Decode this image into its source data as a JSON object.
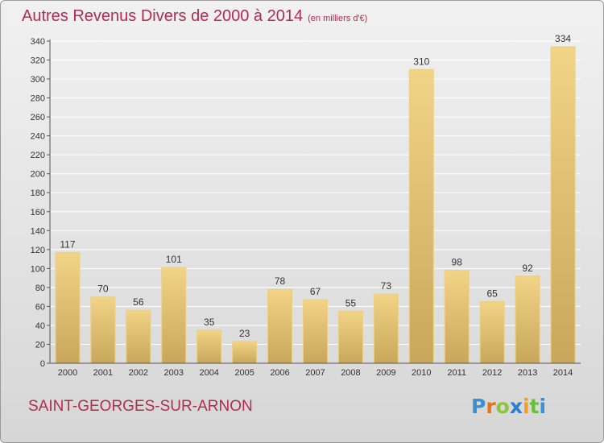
{
  "header": {
    "title": "Autres Revenus Divers de 2000 à 2014",
    "unit": "(en milliers d'€)"
  },
  "footer": {
    "city": "SAINT-GEORGES-SUR-ARNON",
    "logo": {
      "letters": [
        "P",
        "r",
        "o",
        "x",
        "i",
        "t",
        "i"
      ],
      "colors": [
        "#3a8fd6",
        "#e8731a",
        "#8cc63f",
        "#2a7fd0",
        "#f0a020",
        "#6cbf3a",
        "#3a8fd6"
      ]
    }
  },
  "colors": {
    "bar": "#f2d487",
    "bar_dark": "#c8a75a",
    "title": "#b42b4f",
    "grid": "#ffffff",
    "axis": "#555555"
  },
  "chart_data": {
    "type": "bar",
    "categories": [
      "2000",
      "2001",
      "2002",
      "2003",
      "2004",
      "2005",
      "2006",
      "2007",
      "2008",
      "2009",
      "2010",
      "2011",
      "2012",
      "2013",
      "2014"
    ],
    "values": [
      117,
      70,
      56,
      101,
      35,
      23,
      78,
      67,
      55,
      73,
      310,
      98,
      65,
      92,
      334
    ],
    "yticks": [
      0,
      20,
      40,
      60,
      80,
      100,
      120,
      140,
      160,
      180,
      200,
      220,
      240,
      260,
      280,
      300,
      320,
      340
    ],
    "ylim": [
      0,
      340
    ],
    "grid": true
  }
}
